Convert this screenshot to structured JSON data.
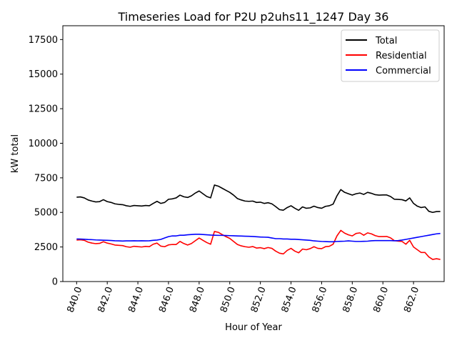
{
  "chart_data": {
    "type": "line",
    "title": "Timeseries Load for P2U p2uhs11_1247  Day 36",
    "xlabel": "Hour of Year",
    "ylabel": "kW total",
    "xlim": [
      839.1,
      864.0
    ],
    "ylim": [
      0,
      18500
    ],
    "xticks": [
      840,
      842,
      844,
      846,
      848,
      850,
      852,
      854,
      856,
      858,
      860,
      862
    ],
    "xtick_labels": [
      "840.0",
      "842.0",
      "844.0",
      "846.0",
      "848.0",
      "850.0",
      "852.0",
      "854.0",
      "856.0",
      "858.0",
      "860.0",
      "862.0"
    ],
    "yticks": [
      0,
      2500,
      5000,
      7500,
      10000,
      12500,
      15000,
      17500
    ],
    "ytick_labels": [
      "0",
      "2500",
      "5000",
      "7500",
      "10000",
      "12500",
      "15000",
      "17500"
    ],
    "grid": false,
    "legend_position": "top-right",
    "x": [
      840.0,
      840.25,
      840.5,
      840.75,
      841.0,
      841.25,
      841.5,
      841.75,
      842.0,
      842.25,
      842.5,
      842.75,
      843.0,
      843.25,
      843.5,
      843.75,
      844.0,
      844.25,
      844.5,
      844.75,
      845.0,
      845.25,
      845.5,
      845.75,
      846.0,
      846.25,
      846.5,
      846.75,
      847.0,
      847.25,
      847.5,
      847.75,
      848.0,
      848.25,
      848.5,
      848.75,
      849.0,
      849.25,
      849.5,
      849.75,
      850.0,
      850.25,
      850.5,
      850.75,
      851.0,
      851.25,
      851.5,
      851.75,
      852.0,
      852.25,
      852.5,
      852.75,
      853.0,
      853.25,
      853.5,
      853.75,
      854.0,
      854.25,
      854.5,
      854.75,
      855.0,
      855.25,
      855.5,
      855.75,
      856.0,
      856.25,
      856.5,
      856.75,
      857.0,
      857.25,
      857.5,
      857.75,
      858.0,
      858.25,
      858.5,
      858.75,
      859.0,
      859.25,
      859.5,
      859.75,
      860.0,
      860.25,
      860.5,
      860.75,
      861.0,
      861.25,
      861.5,
      861.75,
      862.0,
      862.25,
      862.5,
      862.75,
      863.0,
      863.25,
      863.5,
      863.75
    ],
    "series": [
      {
        "name": "Total",
        "color": "#000000",
        "values": [
          6100,
          6120,
          6050,
          5900,
          5820,
          5760,
          5780,
          5920,
          5780,
          5720,
          5620,
          5580,
          5560,
          5480,
          5440,
          5500,
          5480,
          5460,
          5500,
          5480,
          5650,
          5800,
          5650,
          5720,
          5950,
          5980,
          6050,
          6250,
          6130,
          6080,
          6200,
          6400,
          6550,
          6350,
          6150,
          6050,
          6980,
          6900,
          6750,
          6600,
          6450,
          6250,
          6000,
          5900,
          5820,
          5800,
          5820,
          5720,
          5740,
          5650,
          5700,
          5620,
          5420,
          5200,
          5160,
          5350,
          5480,
          5300,
          5150,
          5400,
          5300,
          5330,
          5450,
          5350,
          5300,
          5440,
          5480,
          5600,
          6200,
          6650,
          6450,
          6350,
          6250,
          6350,
          6400,
          6300,
          6450,
          6380,
          6280,
          6250,
          6260,
          6260,
          6150,
          5950,
          5940,
          5920,
          5830,
          6050,
          5650,
          5450,
          5350,
          5400,
          5080,
          5000,
          5060,
          5070
        ]
      },
      {
        "name": "Residential",
        "color": "#ff0000",
        "values": [
          3000,
          3020,
          2980,
          2850,
          2780,
          2740,
          2760,
          2880,
          2780,
          2720,
          2640,
          2620,
          2600,
          2520,
          2480,
          2550,
          2520,
          2500,
          2540,
          2520,
          2700,
          2780,
          2560,
          2520,
          2650,
          2680,
          2680,
          2900,
          2750,
          2640,
          2750,
          2950,
          3150,
          2980,
          2820,
          2700,
          3620,
          3560,
          3400,
          3250,
          3120,
          2900,
          2680,
          2580,
          2520,
          2480,
          2530,
          2420,
          2450,
          2380,
          2460,
          2400,
          2200,
          2050,
          2000,
          2250,
          2400,
          2200,
          2080,
          2350,
          2300,
          2380,
          2520,
          2400,
          2380,
          2520,
          2550,
          2700,
          3300,
          3700,
          3500,
          3380,
          3300,
          3480,
          3520,
          3350,
          3520,
          3450,
          3320,
          3250,
          3250,
          3260,
          3160,
          2960,
          2920,
          2900,
          2700,
          2980,
          2500,
          2300,
          2100,
          2100,
          1780,
          1600,
          1650,
          1600
        ]
      },
      {
        "name": "Commercial",
        "color": "#0000ff",
        "values": [
          3080,
          3070,
          3060,
          3040,
          3030,
          3010,
          3000,
          2990,
          2980,
          2970,
          2950,
          2940,
          2930,
          2940,
          2940,
          2950,
          2940,
          2950,
          2940,
          2950,
          2980,
          3000,
          3050,
          3150,
          3250,
          3300,
          3300,
          3350,
          3350,
          3380,
          3400,
          3420,
          3420,
          3400,
          3380,
          3360,
          3350,
          3340,
          3340,
          3330,
          3320,
          3310,
          3300,
          3290,
          3280,
          3270,
          3260,
          3240,
          3220,
          3210,
          3200,
          3150,
          3100,
          3100,
          3080,
          3080,
          3060,
          3060,
          3040,
          3020,
          3000,
          2980,
          2940,
          2920,
          2900,
          2890,
          2880,
          2880,
          2900,
          2910,
          2920,
          2940,
          2920,
          2900,
          2900,
          2910,
          2920,
          2950,
          2960,
          2960,
          2960,
          2960,
          2960,
          2950,
          2960,
          3000,
          3050,
          3100,
          3150,
          3200,
          3250,
          3300,
          3350,
          3400,
          3450,
          3480
        ]
      }
    ]
  }
}
